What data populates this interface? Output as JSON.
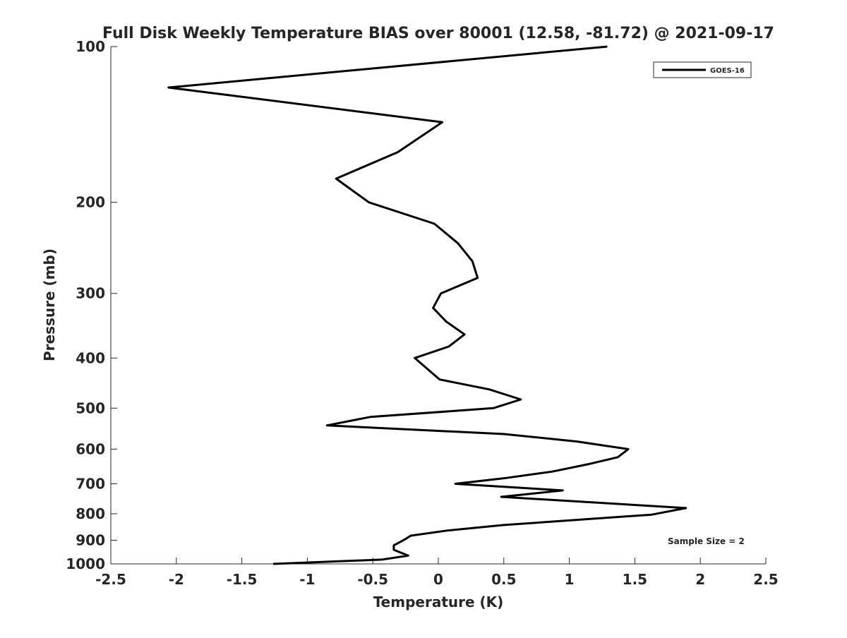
{
  "chart_data": {
    "type": "line",
    "title": "Full Disk Weekly Temperature BIAS over 80001 (12.58, -81.72) @ 2021-09-17",
    "xlabel": "Temperature (K)",
    "ylabel": "Pressure (mb)",
    "xlim": [
      -2.5,
      2.5
    ],
    "ylim": [
      100,
      1000
    ],
    "yscale": "log",
    "y_reversed": true,
    "xticks": [
      -2.5,
      -2,
      -1.5,
      -1,
      -0.5,
      0,
      0.5,
      1,
      1.5,
      2,
      2.5
    ],
    "xtick_labels": [
      "-2.5",
      "-2",
      "-1.5",
      "-1",
      "-0.5",
      "0",
      "0.5",
      "1",
      "1.5",
      "2",
      "2.5"
    ],
    "yticks": [
      100,
      200,
      300,
      400,
      500,
      600,
      700,
      800,
      900,
      1000
    ],
    "ytick_labels": [
      "100",
      "200",
      "300",
      "400",
      "500",
      "600",
      "700",
      "800",
      "900",
      "1000"
    ],
    "grid": false,
    "legend": {
      "placement": "top-right",
      "entries": [
        "GOES-16"
      ]
    },
    "annotation": "Sample Size = 2",
    "series": [
      {
        "name": "GOES-16",
        "color": "#000000",
        "x": [
          1.29,
          -2.06,
          0.03,
          -0.31,
          -0.78,
          -0.53,
          -0.03,
          0.15,
          0.26,
          0.3,
          0.02,
          -0.04,
          0.06,
          0.2,
          0.08,
          -0.18,
          0.01,
          0.39,
          0.63,
          0.42,
          -0.52,
          -0.85,
          0.5,
          1.06,
          1.45,
          1.37,
          1.14,
          0.87,
          0.52,
          0.13,
          0.95,
          0.48,
          1.89,
          1.63,
          0.5,
          0.07,
          -0.21,
          -0.25,
          -0.34,
          -0.34,
          -0.23,
          -0.43,
          -1.26
        ],
        "y": [
          100,
          120,
          140,
          160,
          180,
          200,
          220,
          240,
          260,
          280,
          300,
          320,
          340,
          360,
          380,
          400,
          440,
          460,
          481,
          500,
          520,
          540,
          561,
          580,
          600,
          622,
          642,
          663,
          682,
          700,
          721,
          742,
          780,
          803,
          841,
          862,
          882,
          895,
          921,
          939,
          964,
          981,
          1000
        ]
      }
    ]
  }
}
